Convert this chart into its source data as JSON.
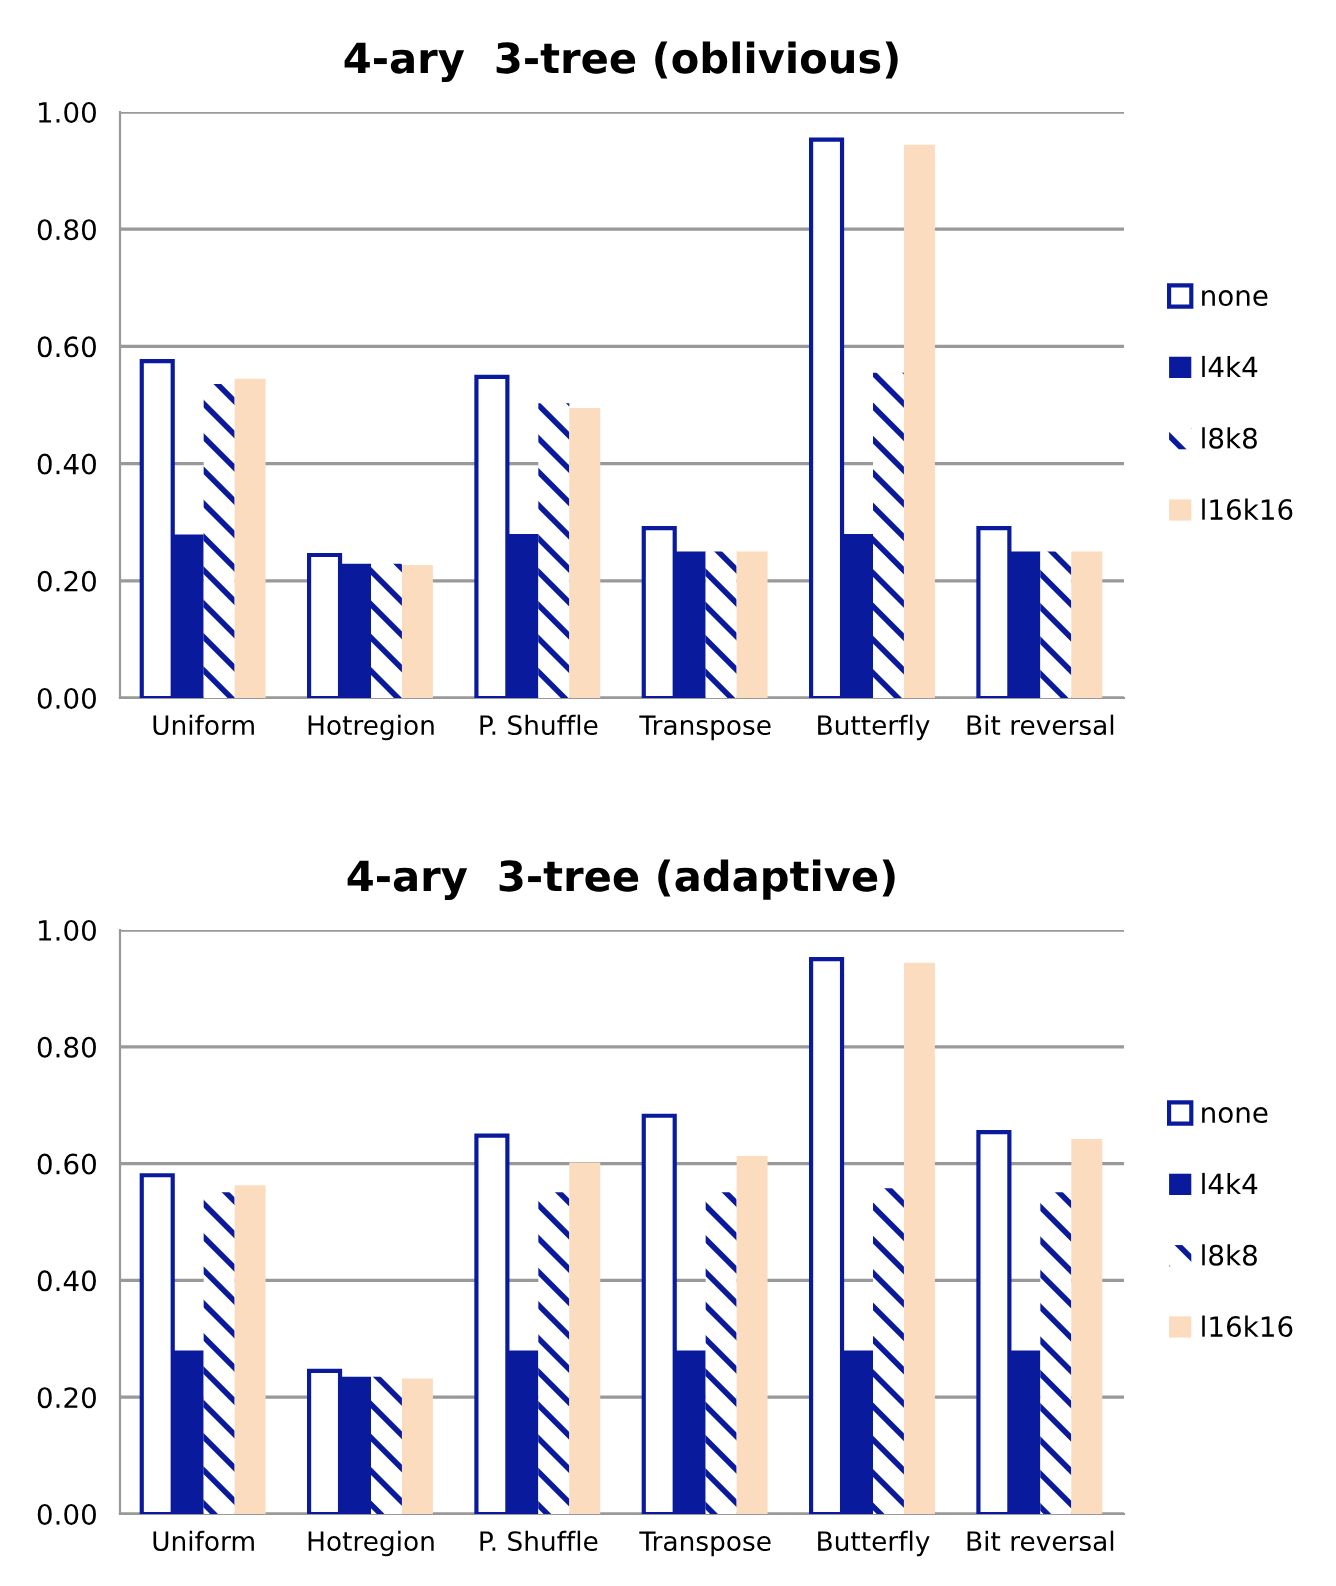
{
  "chart_data": [
    {
      "type": "bar",
      "title": "4-ary  3-tree (oblivious)",
      "categories": [
        "Uniform",
        "Hotregion",
        "P. Shuffle",
        "Transpose",
        "Butterfly",
        "Bit reversal"
      ],
      "series": [
        {
          "name": "none",
          "color": "#0a1a9c",
          "values": [
            0.575,
            0.244,
            0.548,
            0.29,
            0.953,
            0.29
          ]
        },
        {
          "name": "l4k4",
          "color": "#0a1a9c",
          "values": [
            0.279,
            0.229,
            0.28,
            0.25,
            0.28,
            0.25
          ]
        },
        {
          "name": "l8k8",
          "color": "#0a1a9c",
          "values": [
            0.536,
            0.229,
            0.503,
            0.25,
            0.555,
            0.25
          ]
        },
        {
          "name": "l16k16",
          "color": "#fcdcbf",
          "values": [
            0.545,
            0.227,
            0.495,
            0.25,
            0.944,
            0.25
          ]
        }
      ],
      "ylim": [
        0,
        1
      ],
      "yticks": [
        {
          "value": 0,
          "label": "0.00"
        },
        {
          "value": 0.2,
          "label": "0.20"
        },
        {
          "value": 0.4,
          "label": "0.40"
        },
        {
          "value": 0.6,
          "label": "0.60"
        },
        {
          "value": 0.8,
          "label": "0.80"
        },
        {
          "value": 1,
          "label": "1.00"
        }
      ],
      "grid": "y",
      "legend": "right"
    },
    {
      "type": "bar",
      "title": "4-ary  3-tree (adaptive)",
      "categories": [
        "Uniform",
        "Hotregion",
        "P. Shuffle",
        "Transpose",
        "Butterfly",
        "Bit reversal"
      ],
      "series": [
        {
          "name": "none",
          "color": "#0a1a9c",
          "values": [
            0.58,
            0.245,
            0.648,
            0.682,
            0.95,
            0.654
          ]
        },
        {
          "name": "l4k4",
          "color": "#0a1a9c",
          "values": [
            0.28,
            0.235,
            0.28,
            0.28,
            0.28,
            0.28
          ]
        },
        {
          "name": "l8k8",
          "color": "#0a1a9c",
          "values": [
            0.551,
            0.235,
            0.551,
            0.551,
            0.558,
            0.551
          ]
        },
        {
          "name": "l16k16",
          "color": "#fcdcbf",
          "values": [
            0.563,
            0.232,
            0.602,
            0.613,
            0.944,
            0.642
          ]
        }
      ],
      "ylim": [
        0,
        1
      ],
      "yticks": [
        {
          "value": 0,
          "label": "0.00"
        },
        {
          "value": 0.2,
          "label": "0.20"
        },
        {
          "value": 0.4,
          "label": "0.40"
        },
        {
          "value": 0.6,
          "label": "0.60"
        },
        {
          "value": 0.8,
          "label": "0.80"
        },
        {
          "value": 1,
          "label": "1.00"
        }
      ],
      "grid": "y",
      "legend": "right"
    }
  ]
}
